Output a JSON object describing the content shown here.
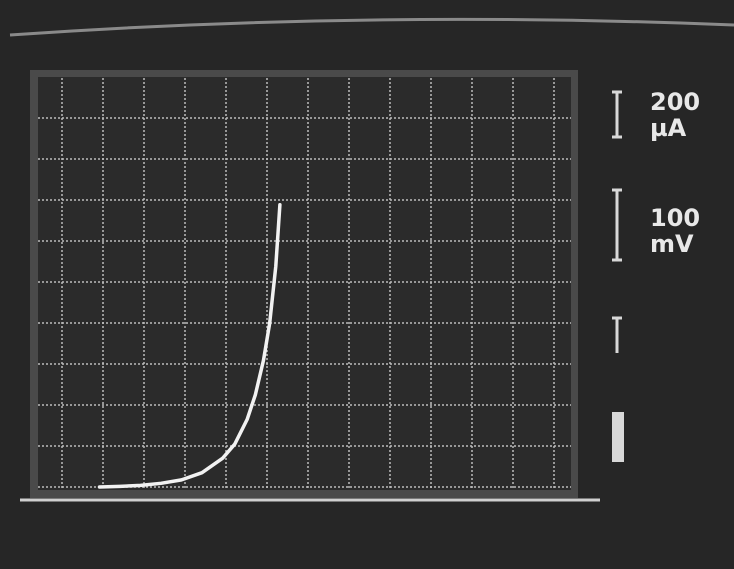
{
  "chart_data": {
    "type": "line",
    "y_scale_label": 200,
    "y_scale_unit": "µA",
    "x_scale_label": 100,
    "x_scale_unit": "mV",
    "x": [
      0,
      50,
      100,
      150,
      200,
      250,
      300,
      330,
      360,
      380,
      400,
      415,
      430,
      440
    ],
    "values": [
      0,
      3,
      8,
      18,
      35,
      70,
      140,
      210,
      330,
      450,
      620,
      800,
      1080,
      1380
    ],
    "color": "#f2f2f2",
    "xlim": [
      -150,
      1150
    ],
    "ylim": [
      0,
      2000
    ]
  }
}
